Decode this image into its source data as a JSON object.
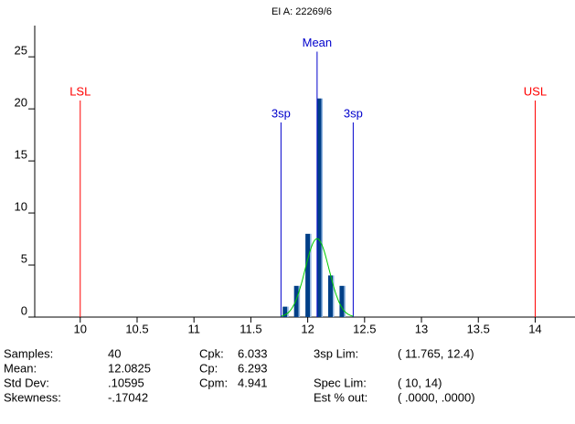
{
  "chart_data": {
    "type": "histogram",
    "title": "EI A: 22269/6",
    "bins": [
      11.75,
      11.85,
      11.95,
      12.05,
      12.15,
      12.25,
      12.35
    ],
    "counts": [
      1,
      3,
      8,
      21,
      4,
      3
    ],
    "color": "#003f87",
    "curve_color": "#00cc00",
    "xlim": [
      9.6,
      14.35
    ],
    "xticks": [
      10,
      10.5,
      11,
      11.5,
      12,
      12.5,
      13,
      13.5,
      14
    ],
    "ylim": [
      0,
      28
    ],
    "yticks": [
      0,
      5,
      10,
      15,
      20,
      25
    ],
    "lines": [
      {
        "label": "LSL",
        "value": 10,
        "color": "#ff0000"
      },
      {
        "label": "USL",
        "value": 14,
        "color": "#ff0000"
      },
      {
        "label": "3sp",
        "value": 11.765,
        "color": "#0000cc"
      },
      {
        "label": "3sp",
        "value": 12.4,
        "color": "#0000cc"
      },
      {
        "label": "Mean",
        "value": 12.0825,
        "color": "#0000cc"
      }
    ]
  },
  "stats": [
    [
      {
        "label": "Samples:",
        "value": "40"
      },
      {
        "label": "Cpk:",
        "value": "6.033"
      },
      {
        "label": "3sp Lim:",
        "value": "( 11.765,  12.4)"
      }
    ],
    [
      {
        "label": "Mean:",
        "value": "12.0825"
      },
      {
        "label": "Cp:",
        "value": "6.293"
      },
      null
    ],
    [
      {
        "label": "Std Dev:",
        "value": ".10595"
      },
      {
        "label": "Cpm:",
        "value": "4.941"
      },
      {
        "label": "Spec Lim:",
        "value": "( 10,  14)"
      }
    ],
    [
      {
        "label": "Skewness:",
        "value": "-.17042"
      },
      null,
      {
        "label": "Est % out:",
        "value": "( .0000,  .0000)"
      }
    ]
  ]
}
